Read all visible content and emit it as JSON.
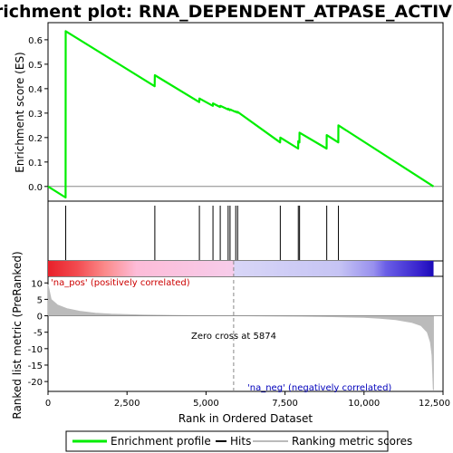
{
  "chart_data": {
    "type": "line",
    "title": "Enrichment plot: RNA_DEPENDENT_ATPASE_ACTIVITY",
    "top_panel": {
      "ylabel": "Enrichment score (ES)",
      "ylim": [
        -0.06,
        0.67
      ],
      "yticks": [
        0.0,
        0.1,
        0.2,
        0.3,
        0.4,
        0.5,
        0.6
      ],
      "ytick_labels": [
        "0.0",
        "0.1",
        "0.2",
        "0.3",
        "0.4",
        "0.5",
        "0.6"
      ]
    },
    "bottom_panel": {
      "ylabel": "Ranked list metric (PreRanked)",
      "ylim": [
        -23,
        12
      ],
      "yticks": [
        10,
        5,
        0,
        -5,
        -10,
        -15,
        -20
      ],
      "ytick_labels": [
        "10",
        "5",
        "0",
        "-5",
        "-10",
        "-15",
        "-20"
      ],
      "annotations": {
        "pos": "'na_pos' (positively correlated)",
        "neg": "'na_neg' (negatively correlated)",
        "zero": "Zero cross at 5874"
      },
      "zero_cross": 5874
    },
    "x": {
      "label": "Rank in Ordered Dataset",
      "lim": [
        0,
        12500
      ],
      "ticks": [
        0,
        2500,
        5000,
        7500,
        10000,
        12500
      ],
      "tick_labels": [
        "0",
        "2,500",
        "5,000",
        "7,500",
        "10,000",
        "12,500"
      ],
      "max_rank": 12200
    },
    "hits": [
      560,
      3380,
      4790,
      5220,
      5450,
      5700,
      5760,
      5940,
      6000,
      7350,
      7920,
      7960,
      8820,
      9190
    ],
    "es_profile": [
      [
        0,
        0.0
      ],
      [
        555,
        -0.045
      ],
      [
        560,
        0.635
      ],
      [
        3375,
        0.41
      ],
      [
        3380,
        0.455
      ],
      [
        4785,
        0.345
      ],
      [
        4790,
        0.36
      ],
      [
        5215,
        0.33
      ],
      [
        5220,
        0.34
      ],
      [
        5445,
        0.325
      ],
      [
        5450,
        0.33
      ],
      [
        5695,
        0.315
      ],
      [
        5700,
        0.318
      ],
      [
        5755,
        0.312
      ],
      [
        5760,
        0.315
      ],
      [
        5935,
        0.305
      ],
      [
        5940,
        0.307
      ],
      [
        5995,
        0.302
      ],
      [
        6000,
        0.305
      ],
      [
        7345,
        0.18
      ],
      [
        7350,
        0.2
      ],
      [
        7915,
        0.155
      ],
      [
        7920,
        0.185
      ],
      [
        7955,
        0.18
      ],
      [
        7960,
        0.22
      ],
      [
        8815,
        0.155
      ],
      [
        8820,
        0.21
      ],
      [
        9185,
        0.18
      ],
      [
        9190,
        0.25
      ],
      [
        12200,
        0.0
      ]
    ],
    "metric_curve": [
      [
        0,
        9.5
      ],
      [
        100,
        5.0
      ],
      [
        300,
        3.3
      ],
      [
        600,
        2.2
      ],
      [
        1000,
        1.4
      ],
      [
        1500,
        0.8
      ],
      [
        2000,
        0.5
      ],
      [
        3000,
        0.25
      ],
      [
        4000,
        0.1
      ],
      [
        5000,
        0.04
      ],
      [
        5874,
        0.0
      ],
      [
        7000,
        -0.08
      ],
      [
        8000,
        -0.15
      ],
      [
        9000,
        -0.28
      ],
      [
        10000,
        -0.5
      ],
      [
        10500,
        -0.75
      ],
      [
        11000,
        -1.2
      ],
      [
        11500,
        -2.0
      ],
      [
        11800,
        -3.0
      ],
      [
        12000,
        -5.0
      ],
      [
        12100,
        -8.0
      ],
      [
        12150,
        -12.0
      ],
      [
        12190,
        -22.5
      ],
      [
        12200,
        -22.5
      ]
    ],
    "heatmap_stops": [
      {
        "x": 0,
        "color": "#e8202a"
      },
      {
        "x": 900,
        "color": "#f24a4f"
      },
      {
        "x": 1800,
        "color": "#fb8a8a"
      },
      {
        "x": 2800,
        "color": "#fdbcd8"
      },
      {
        "x": 5874,
        "color": "#f7ccea"
      },
      {
        "x": 5900,
        "color": "#d8d6f7"
      },
      {
        "x": 9200,
        "color": "#c6c4f4"
      },
      {
        "x": 10300,
        "color": "#9890ee"
      },
      {
        "x": 10700,
        "color": "#6a5ee6"
      },
      {
        "x": 11800,
        "color": "#3520cc"
      },
      {
        "x": 12200,
        "color": "#1a0ab8"
      }
    ],
    "legend": {
      "placement": "bottom",
      "entries": [
        {
          "label": "Enrichment profile",
          "color": "#00ee00"
        },
        {
          "label": "Hits",
          "color": "#000000"
        },
        {
          "label": "Ranking metric scores",
          "color": "#bbbbbb"
        }
      ]
    },
    "colors": {
      "es_line": "#00ee00",
      "metric_fill": "#bbbbbb",
      "pos_text": "#cc0000",
      "neg_text": "#0000bb",
      "zero_line": "#888888"
    }
  }
}
